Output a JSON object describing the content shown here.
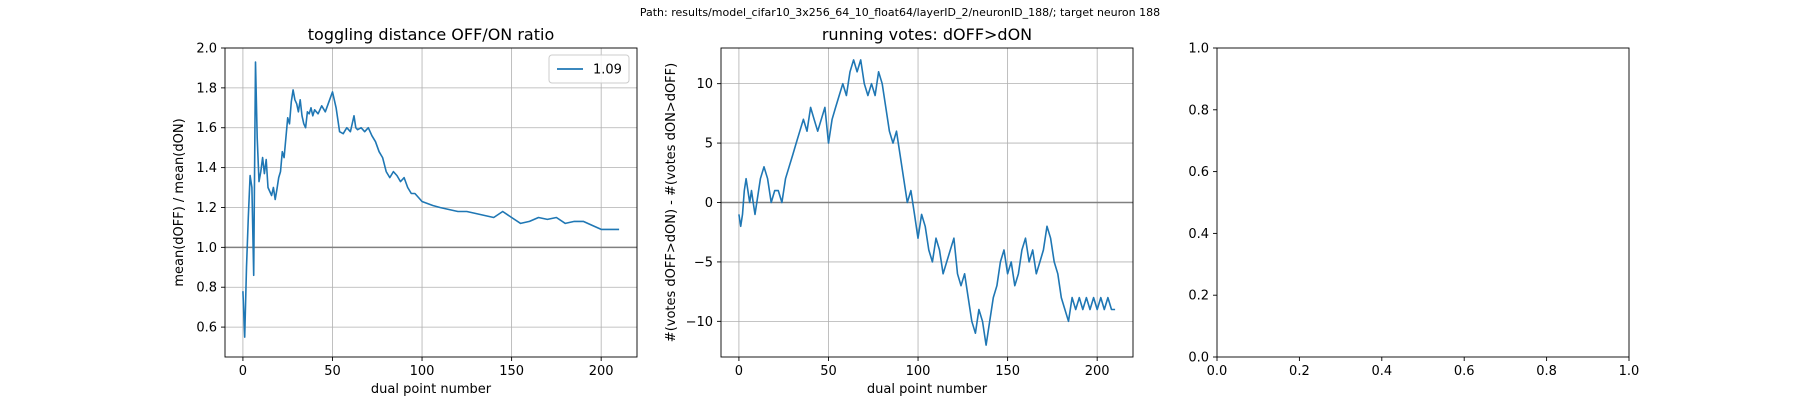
{
  "suptitle": "Path: results/model_cifar10_3x256_64_10_float64/layerID_2/neuronID_188/; target neuron 188",
  "colors": {
    "line": "#1f77b4",
    "refline": "#808080",
    "grid": "#b0b0b0"
  },
  "chart_data": [
    {
      "type": "line",
      "title": "toggling distance OFF/ON ratio",
      "xlabel": "dual point number",
      "ylabel": "mean(dOFF) / mean(dON)",
      "xlim": [
        -10,
        220
      ],
      "ylim": [
        0.45,
        2.0
      ],
      "xticks": [
        0,
        50,
        100,
        150,
        200
      ],
      "yticks": [
        0.6,
        0.8,
        1.0,
        1.2,
        1.4,
        1.6,
        1.8,
        2.0
      ],
      "ytick_labels": [
        "0.6",
        "0.8",
        "1.0",
        "1.2",
        "1.4",
        "1.6",
        "1.8",
        "2.0"
      ],
      "grid": true,
      "hline": 1.0,
      "legend": {
        "position": "top-right",
        "entries": [
          "1.09"
        ]
      },
      "series": [
        {
          "x": [
            0,
            1,
            2,
            3,
            4,
            5,
            6,
            7,
            8,
            9,
            10,
            11,
            12,
            13,
            14,
            15,
            16,
            17,
            18,
            19,
            20,
            21,
            22,
            23,
            24,
            25,
            26,
            27,
            28,
            29,
            30,
            31,
            32,
            33,
            34,
            35,
            36,
            37,
            38,
            39,
            40,
            42,
            44,
            46,
            48,
            50,
            52,
            54,
            56,
            58,
            60,
            61,
            62,
            63,
            64,
            66,
            68,
            70,
            72,
            74,
            76,
            78,
            80,
            82,
            84,
            86,
            88,
            90,
            92,
            94,
            96,
            98,
            100,
            103,
            106,
            110,
            115,
            120,
            125,
            130,
            135,
            140,
            145,
            150,
            155,
            160,
            165,
            170,
            175,
            180,
            185,
            190,
            195,
            200,
            205,
            210
          ],
          "y": [
            0.78,
            0.55,
            0.9,
            1.15,
            1.36,
            1.3,
            0.86,
            1.93,
            1.55,
            1.33,
            1.38,
            1.45,
            1.37,
            1.44,
            1.3,
            1.28,
            1.26,
            1.3,
            1.24,
            1.29,
            1.35,
            1.38,
            1.48,
            1.45,
            1.55,
            1.65,
            1.62,
            1.73,
            1.79,
            1.74,
            1.72,
            1.68,
            1.74,
            1.66,
            1.62,
            1.6,
            1.68,
            1.67,
            1.7,
            1.66,
            1.69,
            1.67,
            1.71,
            1.68,
            1.73,
            1.78,
            1.7,
            1.58,
            1.57,
            1.6,
            1.58,
            1.62,
            1.66,
            1.6,
            1.59,
            1.6,
            1.58,
            1.6,
            1.56,
            1.53,
            1.48,
            1.45,
            1.38,
            1.35,
            1.38,
            1.36,
            1.33,
            1.35,
            1.3,
            1.27,
            1.27,
            1.25,
            1.23,
            1.22,
            1.21,
            1.2,
            1.19,
            1.18,
            1.18,
            1.17,
            1.16,
            1.15,
            1.18,
            1.15,
            1.12,
            1.13,
            1.15,
            1.14,
            1.15,
            1.12,
            1.13,
            1.13,
            1.11,
            1.09,
            1.09,
            1.09
          ]
        }
      ]
    },
    {
      "type": "line",
      "title": "running votes: dOFF>dON",
      "xlabel": "dual point number",
      "ylabel": "#(votes dOFF>dON) - #(votes dON>dOFF)",
      "xlim": [
        -10,
        220
      ],
      "ylim": [
        -13,
        13
      ],
      "xticks": [
        0,
        50,
        100,
        150,
        200
      ],
      "yticks": [
        -10,
        -5,
        0,
        5,
        10
      ],
      "ytick_labels": [
        "−10",
        "−5",
        "0",
        "5",
        "10"
      ],
      "grid": true,
      "hline": 0,
      "series": [
        {
          "x": [
            0,
            1,
            2,
            3,
            4,
            5,
            6,
            7,
            8,
            9,
            10,
            12,
            14,
            16,
            18,
            20,
            22,
            24,
            26,
            28,
            30,
            32,
            34,
            36,
            38,
            40,
            42,
            44,
            46,
            48,
            50,
            52,
            54,
            56,
            58,
            60,
            62,
            64,
            66,
            68,
            70,
            72,
            74,
            76,
            78,
            80,
            82,
            84,
            86,
            88,
            90,
            92,
            94,
            96,
            98,
            100,
            102,
            104,
            106,
            108,
            110,
            112,
            114,
            116,
            118,
            120,
            122,
            124,
            126,
            128,
            130,
            132,
            134,
            136,
            138,
            140,
            142,
            144,
            146,
            148,
            150,
            152,
            154,
            156,
            158,
            160,
            162,
            164,
            166,
            168,
            170,
            172,
            174,
            176,
            178,
            180,
            182,
            184,
            186,
            188,
            190,
            192,
            194,
            196,
            198,
            200,
            202,
            204,
            206,
            208,
            210
          ],
          "y": [
            -1,
            -2,
            -1,
            1,
            2,
            1,
            0,
            1,
            0,
            -1,
            0,
            2,
            3,
            2,
            0,
            1,
            1,
            0,
            2,
            3,
            4,
            5,
            6,
            7,
            6,
            8,
            7,
            6,
            7,
            8,
            5,
            7,
            8,
            9,
            10,
            9,
            11,
            12,
            11,
            12,
            10,
            9,
            10,
            9,
            11,
            10,
            8,
            6,
            5,
            6,
            4,
            2,
            0,
            1,
            -1,
            -3,
            -1,
            -2,
            -4,
            -5,
            -3,
            -4,
            -6,
            -5,
            -4,
            -3,
            -6,
            -7,
            -6,
            -8,
            -10,
            -11,
            -9,
            -10,
            -12,
            -10,
            -8,
            -7,
            -5,
            -4,
            -6,
            -5,
            -7,
            -6,
            -4,
            -3,
            -5,
            -4,
            -6,
            -5,
            -4,
            -2,
            -3,
            -5,
            -6,
            -8,
            -9,
            -10,
            -8,
            -9,
            -8,
            -9,
            -8,
            -9,
            -8,
            -9,
            -8,
            -9,
            -8,
            -9,
            -9
          ]
        }
      ]
    },
    {
      "type": "line",
      "title": "",
      "xlabel": "",
      "ylabel": "",
      "xlim": [
        0,
        1
      ],
      "ylim": [
        0,
        1
      ],
      "xticks": [
        0,
        0.2,
        0.4,
        0.6,
        0.8,
        1.0
      ],
      "xtick_labels": [
        "0.0",
        "0.2",
        "0.4",
        "0.6",
        "0.8",
        "1.0"
      ],
      "yticks": [
        0,
        0.2,
        0.4,
        0.6,
        0.8,
        1.0
      ],
      "ytick_labels": [
        "0.0",
        "0.2",
        "0.4",
        "0.6",
        "0.8",
        "1.0"
      ],
      "grid": false,
      "series": []
    }
  ]
}
